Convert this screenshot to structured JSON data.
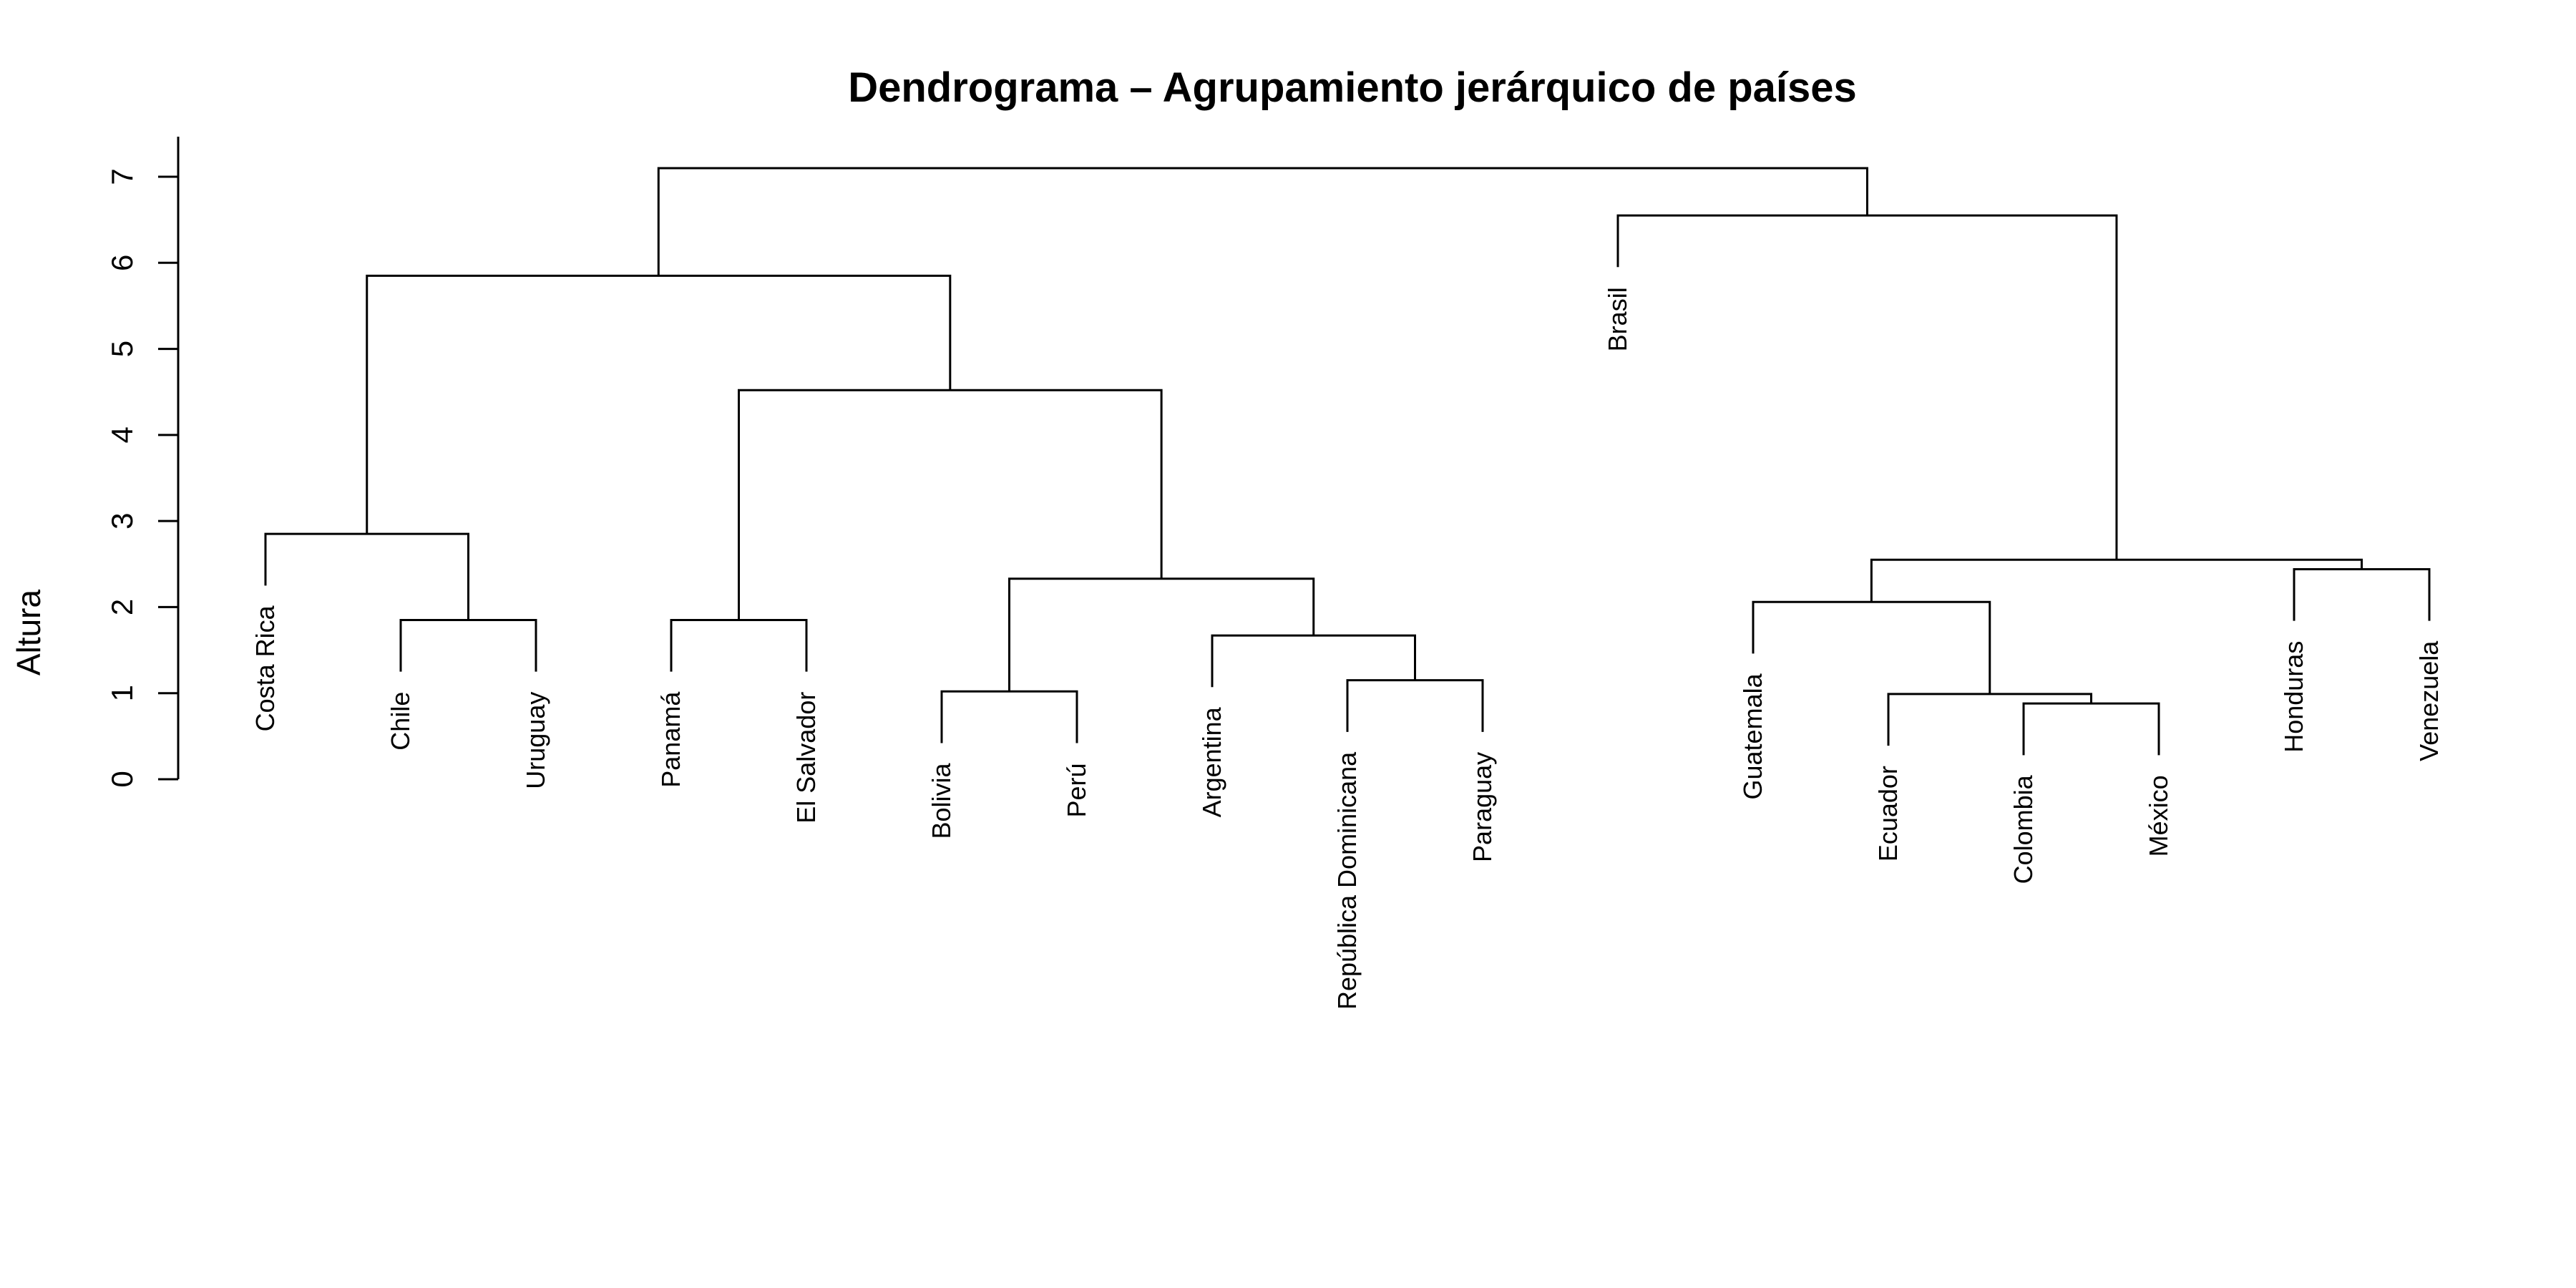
{
  "chart_data": {
    "type": "dendrogram",
    "title": "Dendrograma – Agrupamiento jerárquico de países",
    "xlabel": "",
    "ylabel": "Altura",
    "ylim": [
      0,
      7
    ],
    "yticks": [
      "0",
      "1",
      "2",
      "3",
      "4",
      "5",
      "6",
      "7"
    ],
    "leaf_order": [
      "Costa Rica",
      "Chile",
      "Uruguay",
      "Panamá",
      "El Salvador",
      "Bolivia",
      "Perú",
      "Argentina",
      "República Dominicana",
      "Paraguay",
      "Brasil",
      "Guatemala",
      "Ecuador",
      "Colombia",
      "México",
      "Honduras",
      "Venezuela"
    ],
    "merges": [
      {
        "left": "Chile",
        "right": "Uruguay",
        "height": 1.85
      },
      {
        "left": "Costa Rica",
        "right": [
          "Chile",
          "Uruguay"
        ],
        "height": 2.85
      },
      {
        "left": "Panamá",
        "right": "El Salvador",
        "height": 1.85
      },
      {
        "left": "Bolivia",
        "right": "Perú",
        "height": 1.02
      },
      {
        "left": "República Dominicana",
        "right": "Paraguay",
        "height": 1.15
      },
      {
        "left": "Argentina",
        "right": [
          "República Dominicana",
          "Paraguay"
        ],
        "height": 1.67
      },
      {
        "left": [
          "Bolivia",
          "Perú"
        ],
        "right": [
          "Argentina",
          "República Dominicana",
          "Paraguay"
        ],
        "height": 2.33
      },
      {
        "left": [
          "Panamá",
          "El Salvador"
        ],
        "right": [
          "Bolivia",
          "Perú",
          "Argentina",
          "República Dominicana",
          "Paraguay"
        ],
        "height": 4.52
      },
      {
        "left": [
          "Costa Rica",
          "Chile",
          "Uruguay"
        ],
        "right": [
          "Panamá",
          "El Salvador",
          "Bolivia",
          "Perú",
          "Argentina",
          "República Dominicana",
          "Paraguay"
        ],
        "height": 5.85
      },
      {
        "left": "Colombia",
        "right": "México",
        "height": 0.88
      },
      {
        "left": "Ecuador",
        "right": [
          "Colombia",
          "México"
        ],
        "height": 0.99
      },
      {
        "left": "Guatemala",
        "right": [
          "Ecuador",
          "Colombia",
          "México"
        ],
        "height": 2.06
      },
      {
        "left": "Honduras",
        "right": "Venezuela",
        "height": 2.44
      },
      {
        "left": [
          "Guatemala",
          "Ecuador",
          "Colombia",
          "México"
        ],
        "right": [
          "Honduras",
          "Venezuela"
        ],
        "height": 2.55
      },
      {
        "left": "Brasil",
        "right": [
          "Guatemala",
          "Ecuador",
          "Colombia",
          "México",
          "Honduras",
          "Venezuela"
        ],
        "height": 6.55
      },
      {
        "left": [
          "Costa Rica",
          "Chile",
          "Uruguay",
          "Panamá",
          "El Salvador",
          "Bolivia",
          "Perú",
          "Argentina",
          "República Dominicana",
          "Paraguay"
        ],
        "right": [
          "Brasil",
          "Guatemala",
          "Ecuador",
          "Colombia",
          "México",
          "Honduras",
          "Venezuela"
        ],
        "height": 7.1
      }
    ],
    "leaf_tip_heights": {
      "Costa Rica": 2.25,
      "Chile": 1.25,
      "Uruguay": 1.25,
      "Panamá": 1.25,
      "El Salvador": 1.25,
      "Bolivia": 0.42,
      "Perú": 0.42,
      "Argentina": 1.07,
      "República Dominicana": 0.55,
      "Paraguay": 0.55,
      "Brasil": 5.95,
      "Guatemala": 1.46,
      "Ecuador": 0.39,
      "Colombia": 0.28,
      "México": 0.28,
      "Honduras": 1.84,
      "Venezuela": 1.84
    },
    "grid": false,
    "legend": "none",
    "colors": {
      "lines": "#000000",
      "text": "#000000",
      "background": "#ffffff"
    }
  }
}
